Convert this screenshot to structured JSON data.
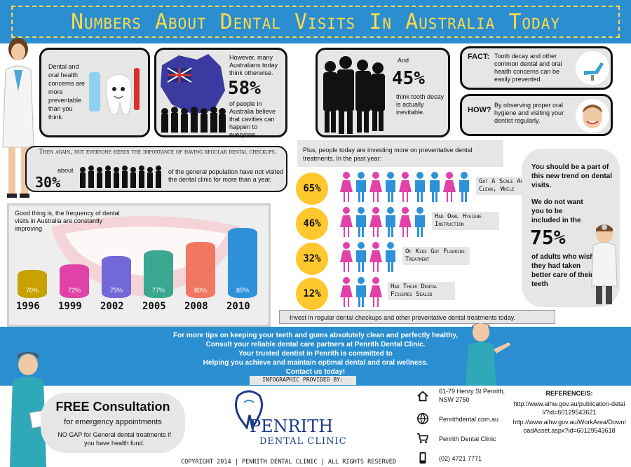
{
  "header": {
    "title": "Numbers About Dental Visits In Australia Today"
  },
  "box1": {
    "text": "Dental and oral health concerns are more preventable than you think."
  },
  "box2": {
    "intro": "However, many Australians today think otherwise.",
    "percent": "58%",
    "text": "of people in Australia believe that cavities can happen to everyone."
  },
  "box3": {
    "intro": "And",
    "percent": "45%",
    "text": "think tooth decay is actually inevitable."
  },
  "fact": {
    "label": "FACT:",
    "text": "Tooth decay and other common dental and oral health concerns can be easily prevented."
  },
  "how": {
    "label": "HOW?",
    "text": "By observing proper oral hygiene and visiting your dentist regularly."
  },
  "checkups": {
    "heading": "Then again, not everyone heeds the importance of having regular dental checkups.",
    "about": "about",
    "percent": "30%",
    "text": "of the general population have not visited the dental clinic for more than a year."
  },
  "bars": {
    "title": "Good thing is, the frequency of dental visits in Australia are constantly improving"
  },
  "chart_data": {
    "type": "bar",
    "categories": [
      "1996",
      "1999",
      "2002",
      "2005",
      "2008",
      "2010"
    ],
    "values": [
      70,
      72,
      75,
      77,
      80,
      85
    ],
    "value_labels": [
      "70%",
      "72%",
      "75%",
      "77%",
      "80%",
      "85%"
    ],
    "colors": [
      "#c8a000",
      "#e042a8",
      "#7268d8",
      "#3aa890",
      "#f07860",
      "#2f92d8"
    ]
  },
  "preventative": {
    "title": "Plus, people today are investing more on preventative dental treatments. In the past year:",
    "rows": [
      {
        "percent": "65%",
        "caption": "got a scale and clean, while",
        "figures": [
          "f",
          "m",
          "f",
          "m",
          "f",
          "m",
          "m",
          "f",
          "m"
        ]
      },
      {
        "percent": "46%",
        "caption": "had oral hygiene instruction",
        "figures": [
          "f",
          "m",
          "f",
          "m",
          "f",
          "m"
        ]
      },
      {
        "percent": "32%",
        "caption": "of kids got fluoride treatment",
        "figures": [
          "f",
          "m",
          "f",
          "m"
        ]
      },
      {
        "percent": "12%",
        "caption": "had their dental fissures sealed",
        "figures": [
          "f",
          "m",
          "f"
        ]
      }
    ],
    "footer": "Invest in regular dental checkups and other preventative dental treatments today.",
    "female_color": "#e042a8",
    "male_color": "#2f92d8"
  },
  "trend": {
    "text1": "You should be a part of this new trend on dental visits.",
    "text2": "We do not want you to be included in the",
    "percent": "75%",
    "text3": "of adults who wish they had taken better care of their teeth"
  },
  "tips": {
    "line1": "For more tips on keeping your teeth and gums absolutely clean and perfectly healthy,",
    "line2": "Consult your reliable dental care partners at Penrith Dental Clinic.",
    "line3": "Your trusted dentist in Penrith is committed to",
    "line4": "Helping you achieve and maintain optimal dental and oral wellness.",
    "line5": "Contact us today!",
    "provided": "INFOGRAPHIC PROVIDED BY:"
  },
  "consult": {
    "title": "FREE Consultation",
    "subtitle": "for emergency appointments",
    "note": "NO GAP for General dental treatments if you have health fund."
  },
  "logo": {
    "name": "PENRITH",
    "sub": "DENTAL CLINIC"
  },
  "contact": {
    "address": "61-79 Henry St Penrith, NSW 2750",
    "website": "Penrithdental.com.au",
    "clinic": "Penrith Dental Clinic",
    "phone": "(02) 4721 7771"
  },
  "reference": {
    "title": "REFERENCE/S:",
    "link1": "http://www.aihw.gov.au/publication-detail/?id=60129543621",
    "link2": "http://www.aihw.gov.au/WorkArea/DownloadAsset.aspx?id=60129543618"
  },
  "copyright": "COPYRIGHT 2014 | PENRITH DENTAL CLINIC | ALL RIGHTS RESERVED"
}
